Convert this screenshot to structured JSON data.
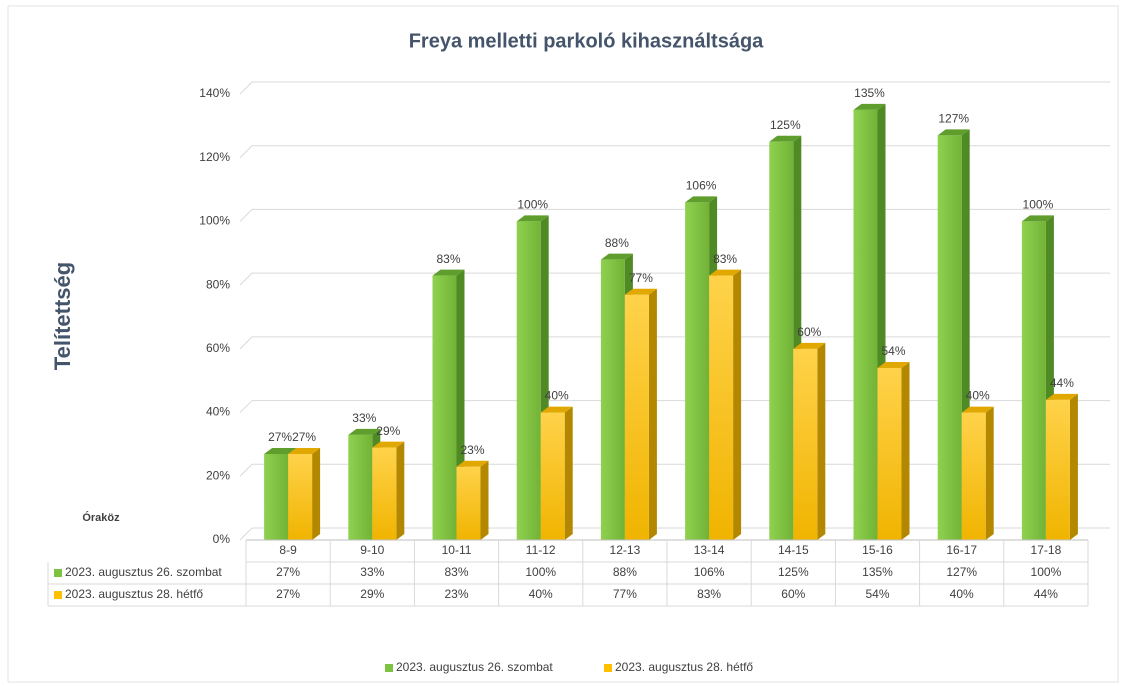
{
  "chart_data": {
    "type": "bar3d",
    "title": "Freya melletti parkoló kihasználtsága",
    "y_label": "Telítettség",
    "x_label": "Óraköz",
    "categories": [
      "8-9",
      "9-10",
      "10-11",
      "11-12",
      "12-13",
      "13-14",
      "14-15",
      "15-16",
      "16-17",
      "17-18"
    ],
    "series": [
      {
        "name": "2023. augusztus 26. szombat",
        "color": "#7ec242",
        "values": [
          27,
          33,
          83,
          100,
          88,
          106,
          125,
          135,
          127,
          100
        ],
        "value_labels": [
          "27%",
          "33%",
          "83%",
          "100%",
          "88%",
          "106%",
          "125%",
          "135%",
          "127%",
          "100%"
        ]
      },
      {
        "name": "2023. augusztus 28. hétfő",
        "color": "#ffc000",
        "values": [
          27,
          29,
          23,
          40,
          77,
          83,
          60,
          54,
          40,
          44
        ],
        "value_labels": [
          "27%",
          "29%",
          "23%",
          "40%",
          "77%",
          "83%",
          "60%",
          "54%",
          "40%",
          "44%"
        ]
      }
    ],
    "ylim": [
      0,
      140
    ],
    "yticks": [
      {
        "value": 0,
        "label": "0%"
      },
      {
        "value": 20,
        "label": "20%"
      },
      {
        "value": 40,
        "label": "40%"
      },
      {
        "value": 60,
        "label": "60%"
      },
      {
        "value": 80,
        "label": "80%"
      },
      {
        "value": 100,
        "label": "100%"
      },
      {
        "value": 120,
        "label": "120%"
      },
      {
        "value": 140,
        "label": "140%"
      }
    ],
    "grid": true,
    "legend": "bottom"
  }
}
